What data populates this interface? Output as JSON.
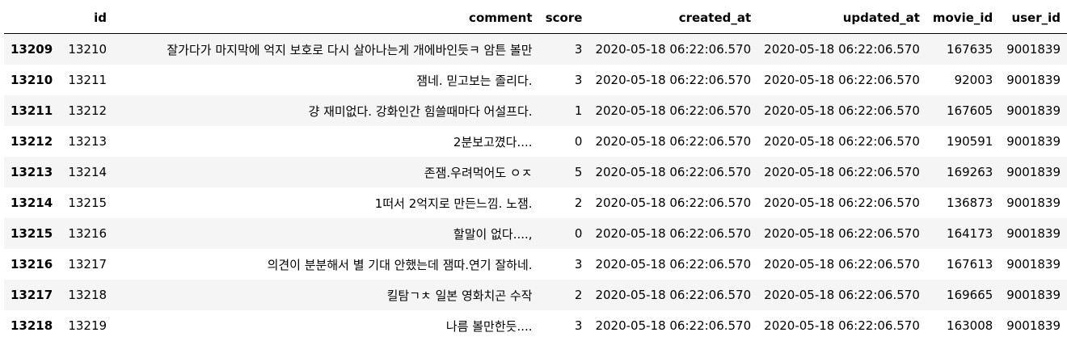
{
  "table": {
    "index_header": "",
    "columns": [
      "id",
      "comment",
      "score",
      "created_at",
      "updated_at",
      "movie_id",
      "user_id"
    ],
    "rows": [
      {
        "index": "13209",
        "id": "13210",
        "comment": "잘가다가 마지막에 억지 보호로 다시 살아나는게 개에바인듯ㅋ 암튼 볼만",
        "score": "3",
        "created_at": "2020-05-18 06:22:06.570",
        "updated_at": "2020-05-18 06:22:06.570",
        "movie_id": "167635",
        "user_id": "9001839"
      },
      {
        "index": "13210",
        "id": "13211",
        "comment": "잼네. 믿고보는 졸리다.",
        "score": "3",
        "created_at": "2020-05-18 06:22:06.570",
        "updated_at": "2020-05-18 06:22:06.570",
        "movie_id": "92003",
        "user_id": "9001839"
      },
      {
        "index": "13211",
        "id": "13212",
        "comment": "걍 재미없다. 강화인간 힘쓸때마다 어설프다.",
        "score": "1",
        "created_at": "2020-05-18 06:22:06.570",
        "updated_at": "2020-05-18 06:22:06.570",
        "movie_id": "167605",
        "user_id": "9001839"
      },
      {
        "index": "13212",
        "id": "13213",
        "comment": "2분보고꼈다....",
        "score": "0",
        "created_at": "2020-05-18 06:22:06.570",
        "updated_at": "2020-05-18 06:22:06.570",
        "movie_id": "190591",
        "user_id": "9001839"
      },
      {
        "index": "13213",
        "id": "13214",
        "comment": "존잼.우려먹어도 ㅇㅈ",
        "score": "5",
        "created_at": "2020-05-18 06:22:06.570",
        "updated_at": "2020-05-18 06:22:06.570",
        "movie_id": "169263",
        "user_id": "9001839"
      },
      {
        "index": "13214",
        "id": "13215",
        "comment": "1떠서 2억지로 만든느낌. 노잼.",
        "score": "2",
        "created_at": "2020-05-18 06:22:06.570",
        "updated_at": "2020-05-18 06:22:06.570",
        "movie_id": "136873",
        "user_id": "9001839"
      },
      {
        "index": "13215",
        "id": "13216",
        "comment": "할말이 없다....,",
        "score": "0",
        "created_at": "2020-05-18 06:22:06.570",
        "updated_at": "2020-05-18 06:22:06.570",
        "movie_id": "164173",
        "user_id": "9001839"
      },
      {
        "index": "13216",
        "id": "13217",
        "comment": "의견이 분분해서 별 기대 안했는데 잼따.연기 잘하네.",
        "score": "3",
        "created_at": "2020-05-18 06:22:06.570",
        "updated_at": "2020-05-18 06:22:06.570",
        "movie_id": "167613",
        "user_id": "9001839"
      },
      {
        "index": "13217",
        "id": "13218",
        "comment": "킬탐ㄱㅊ 일본 영화치곤 수작",
        "score": "2",
        "created_at": "2020-05-18 06:22:06.570",
        "updated_at": "2020-05-18 06:22:06.570",
        "movie_id": "169665",
        "user_id": "9001839"
      },
      {
        "index": "13218",
        "id": "13219",
        "comment": "나름 볼만한듯....",
        "score": "3",
        "created_at": "2020-05-18 06:22:06.570",
        "updated_at": "2020-05-18 06:22:06.570",
        "movie_id": "163008",
        "user_id": "9001839"
      }
    ]
  },
  "colors": {
    "stripe": "#f5f5f5",
    "header_rule": "#000000"
  }
}
